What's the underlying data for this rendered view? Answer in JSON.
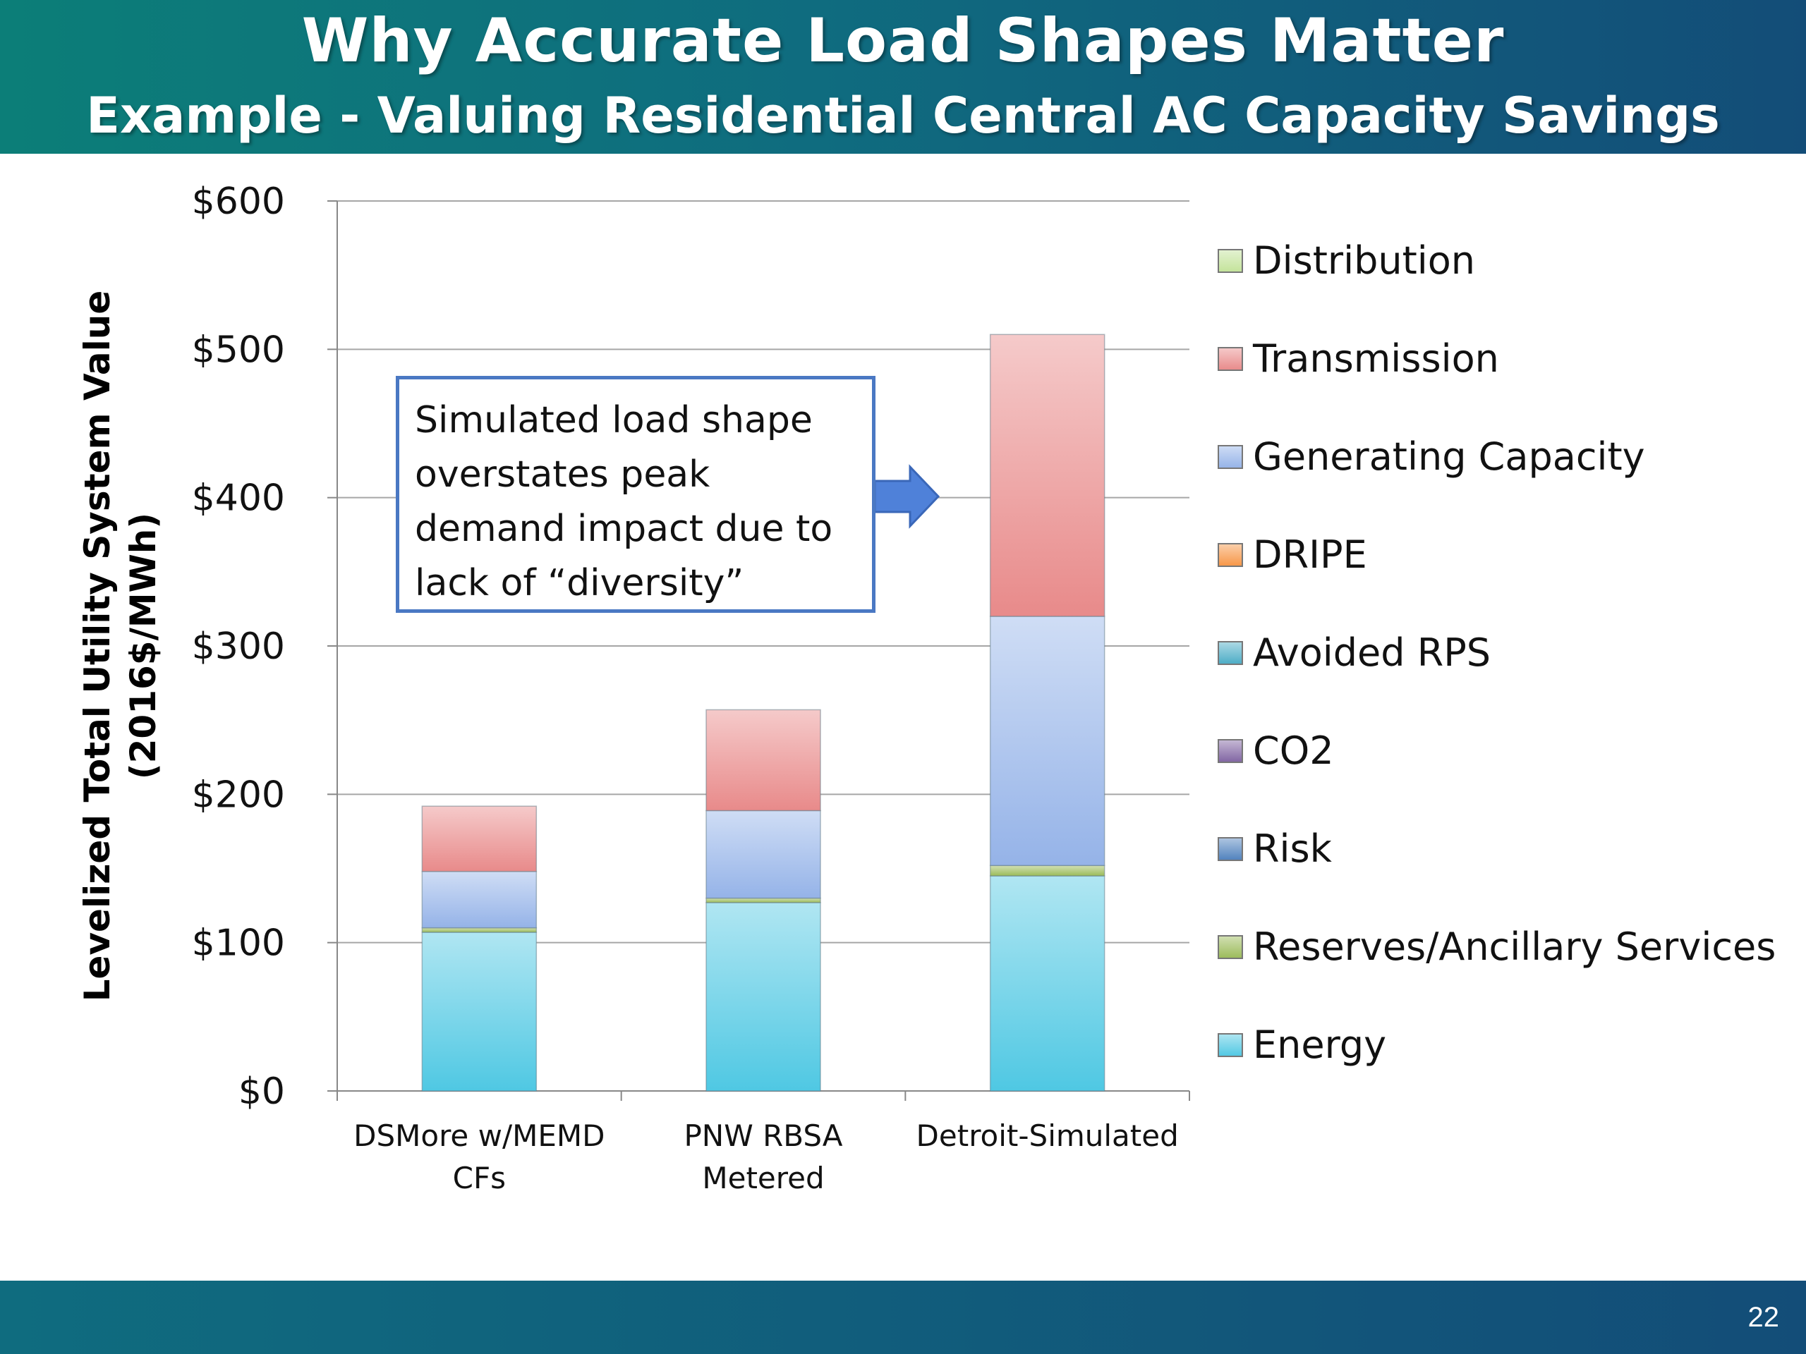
{
  "slide": {
    "title": "Why  Accurate Load Shapes Matter",
    "subtitle": "Example - Valuing Residential Central AC Capacity Savings",
    "page_number": "22",
    "header_colors": [
      "#0c7e78",
      "#134d78"
    ]
  },
  "callout": {
    "text": "Simulated load shape\noverstates peak\ndemand impact due to\nlack of “diversity”",
    "arrow_icon": "right-arrow-icon",
    "border_color": "#4a78c3"
  },
  "chart_data": {
    "type": "bar",
    "stacked": true,
    "title": "",
    "ylabel": "Levelized Total Utility System Value\n(2016$/MWh)",
    "xlabel": "",
    "ylim": [
      0,
      600
    ],
    "yticks": [
      0,
      100,
      200,
      300,
      400,
      500,
      600
    ],
    "ytick_labels": [
      "$0",
      "$100",
      "$200",
      "$300",
      "$400",
      "$500",
      "$600"
    ],
    "grid": true,
    "legend_position": "right",
    "categories": [
      "DSMore w/MEMD\nCFs",
      "PNW RBSA\nMetered",
      "Detroit-Simulated"
    ],
    "series": [
      {
        "name": "Energy",
        "color": "#4fc8e3",
        "values": [
          107,
          127,
          145
        ]
      },
      {
        "name": "Reserves/Ancillary Services",
        "color": "#9bbb59",
        "values": [
          3,
          3,
          7
        ]
      },
      {
        "name": "Risk",
        "color": "#4f81bd",
        "values": [
          0,
          0,
          0
        ]
      },
      {
        "name": "CO2",
        "color": "#8064a2",
        "values": [
          0,
          0,
          0
        ]
      },
      {
        "name": "Avoided RPS",
        "color": "#4bacc6",
        "values": [
          0,
          0,
          0
        ]
      },
      {
        "name": "DRIPE",
        "color": "#f79646",
        "values": [
          0,
          0,
          0
        ]
      },
      {
        "name": "Generating Capacity",
        "color": "#95b3e8",
        "values": [
          38,
          59,
          168
        ]
      },
      {
        "name": "Transmission",
        "color": "#e88a8a",
        "values": [
          44,
          68,
          190
        ]
      },
      {
        "name": "Distribution",
        "color": "#c3e39a",
        "values": [
          0,
          0,
          0
        ]
      }
    ]
  }
}
